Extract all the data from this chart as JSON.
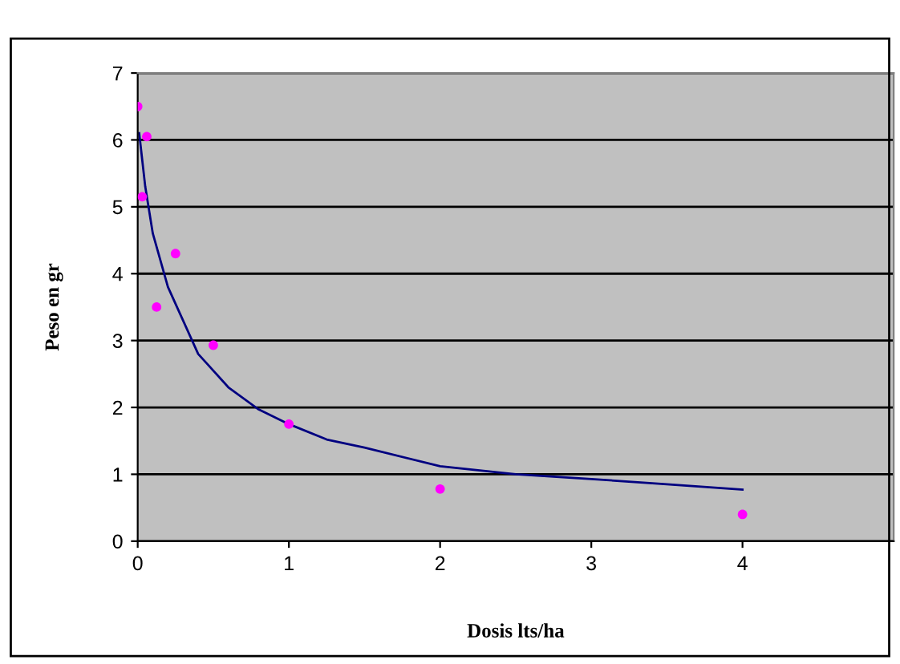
{
  "chart_data": {
    "type": "scatter",
    "xlabel": "Dosis lts/ha",
    "ylabel": "Peso en gr",
    "xlim": [
      0,
      5
    ],
    "ylim": [
      0,
      7
    ],
    "xticks": [
      0,
      1,
      2,
      3,
      4
    ],
    "yticks": [
      0,
      1,
      2,
      3,
      4,
      5,
      6,
      7
    ],
    "grid": "y",
    "marker": "circle",
    "series": [
      {
        "color": "#ff00ff",
        "x": [
          0,
          0.06,
          0.03,
          0.125,
          0.25,
          0.5,
          1,
          2,
          4
        ],
        "values": [
          6.5,
          6.05,
          5.15,
          3.5,
          4.3,
          2.93,
          1.75,
          0.78,
          0.4
        ]
      },
      {
        "type": "line",
        "color": "#000080",
        "marker": "none",
        "x": [
          0.01,
          0.05,
          0.1,
          0.2,
          0.3,
          0.4,
          0.6,
          0.8,
          1,
          1.25,
          1.5,
          2,
          2.5,
          3,
          3.5,
          4
        ],
        "values": [
          6.1,
          5.3,
          4.6,
          3.8,
          3.3,
          2.8,
          2.3,
          1.97,
          1.75,
          1.52,
          1.4,
          1.12,
          1.0,
          0.93,
          0.85,
          0.77
        ]
      }
    ]
  }
}
